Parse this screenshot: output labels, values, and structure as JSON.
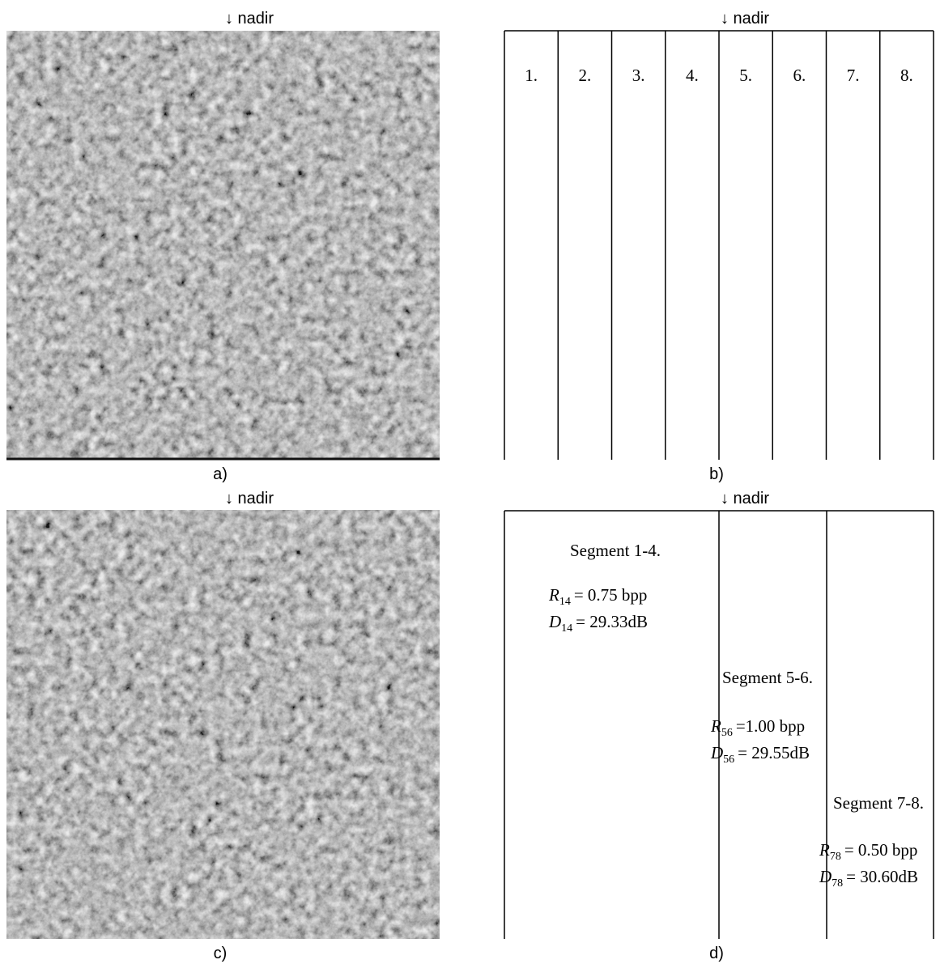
{
  "panels": [
    {
      "nadir": "↓ nadir",
      "caption": "a)"
    },
    {
      "nadir": "↓ nadir",
      "caption": "b)"
    },
    {
      "nadir": "↓ nadir",
      "caption": "c)"
    },
    {
      "nadir": "↓ nadir",
      "caption": "d)"
    }
  ],
  "strips": [
    "1.",
    "2.",
    "3.",
    "4.",
    "5.",
    "6.",
    "7.",
    "8."
  ],
  "segments": [
    {
      "title": "Segment 1-4.",
      "rate": {
        "symbol": "R",
        "sub": "14",
        "value": "= 0.75 bpp"
      },
      "distortion": {
        "symbol": "D",
        "sub": "14",
        "value": "= 29.33dB"
      }
    },
    {
      "title": "Segment 5-6.",
      "rate": {
        "symbol": "R",
        "sub": "56",
        "value": "=1.00 bpp"
      },
      "distortion": {
        "symbol": "D",
        "sub": "56",
        "value": "= 29.55dB"
      }
    },
    {
      "title": "Segment 7-8.",
      "rate": {
        "symbol": "R",
        "sub": "78",
        "value": "= 0.50 bpp"
      },
      "distortion": {
        "symbol": "D",
        "sub": "78",
        "value": "= 30.60dB"
      }
    }
  ]
}
